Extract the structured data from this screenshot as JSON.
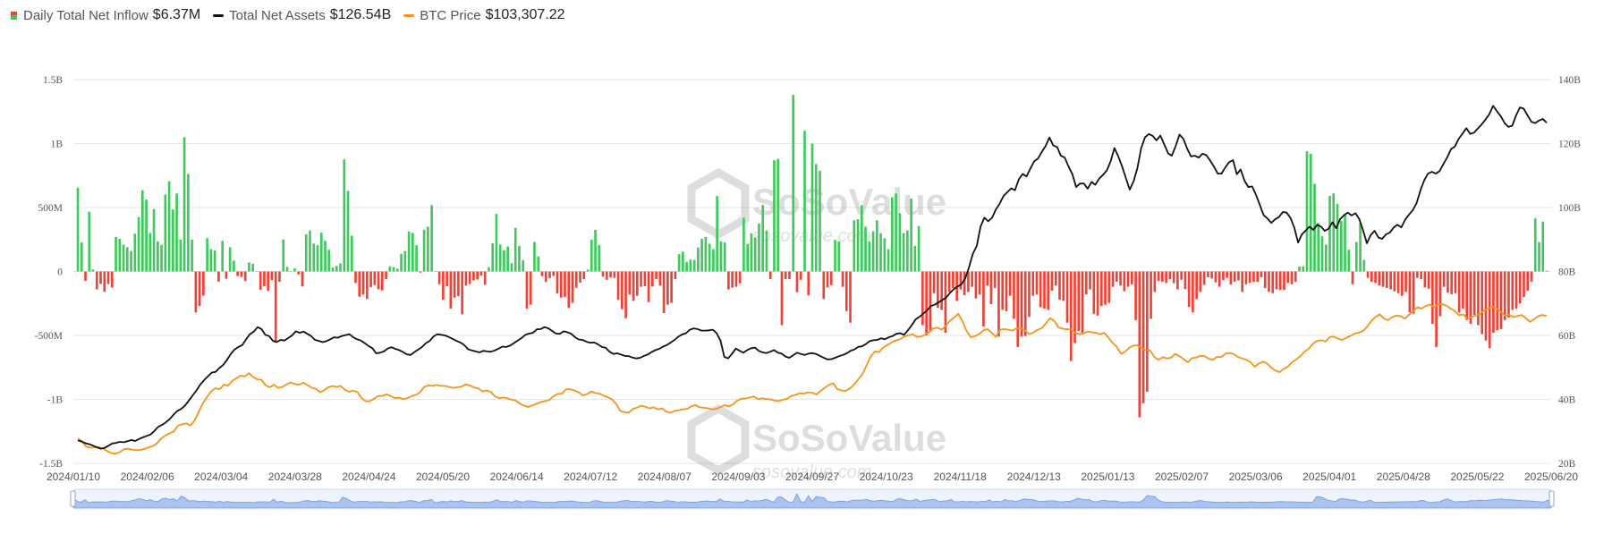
{
  "legend": {
    "inflow_label": "Daily Total Net Inflow",
    "inflow_value": "$6.37M",
    "assets_label": "Total Net Assets",
    "assets_value": "$126.54B",
    "btc_label": "BTC Price",
    "btc_value": "$103,307.22"
  },
  "watermark": {
    "brand": "SoSoValue",
    "site": "sosovalue.com"
  },
  "colors": {
    "positive": "#3dc95b",
    "negative": "#ef4136",
    "assets": "#111111",
    "btc": "#f7931a",
    "grid": "#e6e6e6",
    "navigator": "#a9c4f0"
  },
  "chart_data": {
    "type": "bar",
    "x_ticks": [
      "2024/01/10",
      "2024/02/06",
      "2024/03/04",
      "2024/03/28",
      "2024/04/24",
      "2024/05/20",
      "2024/06/14",
      "2024/07/12",
      "2024/08/07",
      "2024/09/03",
      "2024/09/27",
      "2024/10/23",
      "2024/11/18",
      "2024/12/13",
      "2025/01/13",
      "2025/02/07",
      "2025/03/06",
      "2025/04/01",
      "2025/04/28",
      "2025/05/22",
      "2025/06/20"
    ],
    "y_left_ticks": [
      "1.5B",
      "1B",
      "500M",
      "0",
      "-500M",
      "-1B",
      "-1.5B"
    ],
    "y_left_range": [
      -1500,
      1500
    ],
    "y_left_unit": "M USD",
    "y_right_ticks": [
      "140B",
      "120B",
      "100B",
      "80B",
      "60B",
      "40B",
      "20B"
    ],
    "y_right_range": [
      20,
      140
    ],
    "y_right_unit": "B USD",
    "grid": true,
    "series": [
      {
        "name": "Daily Total Net Inflow",
        "kind": "bar",
        "axis": "left",
        "x_start": "2024/01/11",
        "x_step": "1 trading day",
        "values": [
          655,
          227,
          -73,
          468,
          15,
          -140,
          -97,
          -158,
          -98,
          -126,
          270,
          255,
          210,
          190,
          160,
          295,
          425,
          635,
          562,
          301,
          488,
          236,
          208,
          601,
          705,
          485,
          610,
          250,
          1050,
          762,
          250,
          -320,
          -270,
          -189,
          260,
          175,
          165,
          -80,
          240,
          -57,
          190,
          85,
          -36,
          -43,
          -75,
          70,
          60,
          0,
          -144,
          -115,
          -152,
          -68,
          -550,
          -80,
          250,
          36,
          0,
          25,
          -23,
          -117,
          290,
          320,
          218,
          205,
          303,
          239,
          170,
          31,
          44,
          63,
          876,
          630,
          280,
          -90,
          -197,
          -180,
          -214,
          -124,
          -106,
          -140,
          -148,
          -60,
          40,
          35,
          21,
          138,
          160,
          312,
          302,
          205,
          -9,
          326,
          350,
          519,
          0,
          -100,
          -220,
          -115,
          -290,
          -205,
          -193,
          -335,
          -111,
          -98,
          -70,
          -63,
          -33,
          -104,
          33,
          220,
          450,
          210,
          166,
          195,
          65,
          340,
          200,
          88,
          -290,
          -260,
          230,
          118,
          -37,
          -82,
          -52,
          -35,
          -172,
          -205,
          -200,
          -285,
          -245,
          -128,
          -87,
          -60,
          15,
          248,
          325,
          208,
          -40,
          -65,
          -47,
          -50,
          -222,
          -295,
          -365,
          -180,
          -230,
          -190,
          -120,
          -115,
          -240,
          -118,
          -59,
          -110,
          -325,
          -260,
          -245,
          -60,
          135,
          155,
          75,
          93,
          90,
          187,
          256,
          270,
          217,
          175,
          590,
          235,
          227,
          -140,
          -127,
          -120,
          -93,
          420,
          215,
          298,
          265,
          375,
          520,
          320,
          -60,
          870,
          880,
          -420,
          -60,
          -60,
          1380,
          -162,
          -65,
          1100,
          -187,
          1000,
          840,
          787,
          -215,
          -125,
          -106,
          245,
          235,
          -120,
          -310,
          -400,
          400,
          408,
          518,
          350,
          235,
          315,
          400,
          300,
          260,
          175,
          580,
          610,
          455,
          300,
          320,
          570,
          200,
          355,
          -420,
          -500,
          -470,
          -170,
          -285,
          -300,
          -480,
          -160,
          -130,
          -230,
          -140,
          -185,
          -160,
          -120,
          -210,
          -180,
          -430,
          -110,
          -255,
          -130,
          -510,
          -300,
          -310,
          -190,
          -370,
          -590,
          -510,
          -505,
          -355,
          -190,
          -180,
          -280,
          -290,
          -300,
          -150,
          -110,
          -220,
          -230,
          -400,
          -700,
          -560,
          -465,
          -480,
          -180,
          -140,
          -330,
          -345,
          -270,
          -260,
          -245,
          -120,
          -80,
          -110,
          -155,
          -120,
          -100,
          -380,
          -1140,
          -1030,
          -940,
          -370,
          -160,
          -75,
          -80,
          -90,
          -60,
          -92,
          -140,
          -65,
          -138,
          -278,
          -320,
          -215,
          -160,
          -105,
          -45,
          -55,
          -85,
          -120,
          -68,
          -50,
          -102,
          -80,
          -70,
          -160,
          -100,
          -90,
          -80,
          -80,
          -45,
          -130,
          -160,
          -170,
          -140,
          -145,
          -145,
          -90,
          -100,
          -80,
          38,
          40,
          940,
          920,
          685,
          380,
          275,
          210,
          591,
          610,
          530,
          395,
          440,
          170,
          -100,
          230,
          380,
          90,
          -50,
          -80,
          -90,
          -110,
          -120,
          -130,
          -140,
          -155,
          -170,
          -190,
          -160,
          -320,
          -330,
          -50,
          -60,
          -125,
          -135,
          -410,
          -590,
          -350,
          -120,
          -165,
          -178,
          -170,
          -320,
          -290,
          -380,
          -410,
          -340,
          -420,
          -490,
          -540,
          -600,
          -480,
          -460,
          -450,
          -380,
          -360,
          -300,
          -290,
          -250,
          -200,
          -150,
          -80,
          415,
          230,
          390,
          6
        ]
      },
      {
        "name": "Total Net Assets",
        "kind": "line",
        "axis": "right",
        "x_start": "2024/01/11",
        "x_step": "1 trading day",
        "values": [
          27.2,
          26.8,
          26.3,
          26.0,
          25.5,
          25.0,
          24.6,
          24.8,
          25.5,
          26.2,
          26.4,
          26.7,
          26.6,
          26.9,
          27.3,
          27.0,
          27.6,
          28.1,
          28.6,
          29.0,
          30.1,
          31.4,
          32.0,
          32.8,
          33.8,
          35.2,
          36.4,
          37.0,
          38.0,
          39.6,
          41.2,
          42.8,
          44.6,
          46.0,
          47.2,
          48.4,
          48.6,
          49.8,
          50.8,
          52.4,
          54.2,
          55.6,
          56.4,
          57.0,
          58.8,
          60.4,
          61.2,
          62.6,
          62.0,
          60.2,
          59.8,
          58.3,
          57.9,
          58.6,
          58.4,
          59.2,
          60.0,
          61.3,
          60.8,
          61.2,
          60.5,
          59.8,
          58.6,
          58.3,
          57.9,
          58.2,
          58.8,
          59.4,
          59.3,
          59.8,
          60.1,
          60.4,
          59.4,
          58.8,
          58.4,
          57.6,
          56.7,
          56.0,
          54.4,
          54.6,
          55.0,
          55.9,
          56.3,
          55.8,
          55.4,
          54.8,
          54.1,
          53.9,
          54.8,
          55.6,
          56.4,
          57.6,
          58.3,
          59.7,
          60.4,
          60.2,
          60.0,
          59.5,
          58.9,
          58.3,
          57.8,
          57.0,
          55.7,
          55.3,
          55.0,
          54.7,
          55.2,
          55.0,
          54.9,
          55.3,
          55.9,
          56.5,
          56.4,
          56.8,
          57.6,
          58.4,
          59.2,
          60.2,
          60.6,
          60.8,
          61.9,
          62.0,
          62.6,
          62.2,
          61.4,
          60.6,
          60.5,
          61.3,
          61.0,
          60.5,
          59.4,
          58.7,
          58.6,
          58.0,
          57.7,
          57.8,
          57.2,
          56.4,
          56.1,
          54.9,
          54.2,
          54.4,
          54.0,
          53.6,
          53.5,
          53.1,
          52.8,
          53.0,
          53.6,
          54.0,
          54.8,
          55.4,
          55.8,
          56.5,
          57.0,
          57.8,
          58.6,
          59.6,
          60.3,
          60.7,
          61.8,
          62.2,
          62.0,
          61.5,
          61.5,
          61.6,
          61.8,
          60.7,
          58.4,
          53.3,
          52.8,
          54.2,
          55.9,
          55.2,
          54.6,
          55.4,
          56.0,
          56.2,
          55.2,
          54.7,
          54.5,
          54.9,
          55.4,
          54.6,
          54.3,
          53.4,
          53.0,
          53.8,
          54.6,
          54.2,
          53.9,
          54.3,
          54.5,
          54.2,
          53.6,
          53.0,
          52.5,
          52.6,
          53.0,
          53.5,
          53.9,
          54.4,
          55.2,
          55.6,
          56.4,
          56.6,
          57.3,
          58.2,
          58.5,
          58.6,
          59.1,
          58.8,
          59.4,
          59.8,
          60.5,
          60.7,
          60.2,
          61.6,
          63.2,
          65.0,
          65.8,
          66.8,
          67.8,
          69.2,
          69.6,
          70.3,
          71.1,
          71.8,
          73.3,
          74.5,
          75.3,
          76.0,
          77.8,
          81.4,
          85.6,
          88.0,
          94.0,
          96.8,
          95.7,
          96.8,
          99.4,
          101.2,
          103.6,
          104.8,
          106.0,
          105.4,
          108.8,
          110.5,
          109.7,
          112.1,
          114.4,
          115.3,
          117.4,
          119.2,
          121.9,
          119.4,
          118.9,
          116.2,
          115.6,
          112.8,
          110.4,
          106.4,
          107.5,
          107.5,
          105.9,
          108.0,
          107.1,
          109.0,
          110.2,
          111.6,
          114.4,
          118.6,
          116.0,
          112.8,
          109.2,
          105.6,
          108.2,
          112.4,
          118.6,
          122.0,
          123.0,
          122.4,
          121.0,
          122.5,
          119.8,
          117.0,
          116.2,
          119.2,
          122.8,
          121.5,
          118.4,
          116.0,
          116.2,
          115.6,
          116.8,
          116.4,
          114.7,
          112.8,
          110.6,
          110.6,
          112.6,
          114.2,
          114.8,
          110.4,
          111.9,
          108.4,
          106.4,
          106.6,
          104.0,
          100.8,
          97.6,
          96.6,
          95.2,
          96.3,
          97.0,
          98.6,
          98.4,
          96.8,
          93.8,
          89.0,
          91.6,
          92.8,
          94.0,
          93.0,
          94.6,
          94.0,
          92.7,
          93.4,
          95.4,
          93.5,
          96.4,
          97.6,
          98.4,
          97.5,
          98.2,
          96.4,
          92.8,
          88.8,
          91.4,
          92.7,
          90.6,
          90.2,
          91.6,
          92.2,
          93.8,
          94.6,
          93.8,
          96.2,
          97.8,
          99.2,
          101.4,
          105.4,
          108.6,
          110.6,
          111.2,
          110.6,
          111.4,
          113.6,
          115.7,
          118.3,
          119.1,
          121.5,
          123.1,
          124.8,
          123.0,
          123.4,
          124.7,
          126.0,
          127.5,
          129.2,
          131.8,
          130.1,
          128.5,
          126.4,
          125.2,
          125.6,
          128.8,
          131.3,
          130.9,
          128.8,
          126.8,
          126.4,
          127.2,
          127.7,
          126.5
        ]
      },
      {
        "name": "BTC Price",
        "kind": "line",
        "axis": "right",
        "x_start": "2024/01/11",
        "x_step": "1 trading day",
        "values": [
          27.8,
          27.0,
          25.2,
          24.9,
          25.0,
          25.1,
          24.6,
          23.9,
          23.2,
          23.0,
          23.4,
          24.4,
          24.6,
          24.3,
          24.1,
          24.2,
          24.5,
          25.0,
          25.4,
          26.3,
          27.8,
          28.7,
          29.4,
          30.0,
          31.8,
          32.2,
          32.5,
          31.8,
          33.4,
          36.2,
          38.8,
          40.8,
          42.6,
          43.5,
          43.2,
          44.6,
          44.3,
          45.8,
          46.6,
          47.4,
          47.2,
          48.2,
          47.0,
          46.3,
          46.1,
          44.4,
          43.8,
          44.6,
          43.6,
          43.9,
          44.7,
          45.3,
          44.8,
          44.6,
          45.2,
          44.5,
          43.7,
          43.3,
          42.3,
          42.8,
          43.8,
          44.2,
          43.9,
          44.2,
          43.0,
          42.4,
          42.7,
          42.3,
          40.4,
          39.4,
          39.5,
          40.2,
          41.1,
          41.1,
          41.6,
          41.0,
          40.4,
          40.5,
          40.1,
          40.4,
          41.0,
          41.4,
          42.2,
          43.9,
          44.4,
          44.2,
          44.5,
          44.2,
          44.2,
          43.9,
          43.6,
          43.8,
          44.0,
          44.7,
          44.3,
          43.7,
          43.4,
          42.5,
          42.8,
          42.3,
          40.9,
          40.4,
          40.6,
          40.3,
          39.9,
          39.6,
          38.6,
          38.0,
          37.6,
          38.2,
          38.6,
          39.2,
          39.5,
          39.8,
          41.0,
          41.7,
          41.8,
          43.2,
          43.2,
          42.8,
          42.2,
          41.3,
          41.6,
          42.5,
          42.0,
          41.8,
          41.2,
          40.7,
          40.0,
          38.6,
          36.4,
          36.0,
          35.8,
          37.0,
          37.4,
          38.0,
          37.7,
          37.2,
          37.5,
          36.9,
          37.2,
          36.2,
          35.8,
          36.4,
          36.6,
          36.9,
          37.0,
          37.8,
          38.2,
          37.5,
          37.4,
          37.2,
          36.9,
          37.0,
          37.6,
          38.2,
          37.8,
          38.4,
          39.6,
          40.2,
          40.3,
          40.6,
          40.9,
          40.1,
          40.3,
          40.1,
          40.0,
          39.6,
          39.5,
          39.9,
          40.2,
          41.1,
          41.4,
          41.9,
          41.8,
          42.2,
          42.1,
          41.5,
          42.6,
          43.6,
          44.5,
          45.1,
          43.2,
          42.8,
          42.6,
          43.4,
          44.6,
          46.2,
          47.8,
          50.6,
          53.4,
          55.0,
          54.8,
          56.2,
          57.0,
          57.8,
          58.4,
          58.8,
          59.6,
          60.0,
          60.4,
          59.6,
          59.6,
          60.2,
          61.0,
          62.2,
          62.4,
          61.8,
          63.0,
          64.6,
          65.6,
          66.8,
          64.4,
          61.4,
          59.4,
          59.8,
          60.4,
          61.6,
          62.0,
          60.8,
          59.6,
          61.8,
          62.0,
          61.8,
          61.5,
          62.3,
          62.2,
          61.5,
          60.4,
          60.9,
          61.8,
          62.3,
          63.8,
          65.4,
          64.6,
          62.5,
          62.1,
          61.9,
          62.0,
          60.8,
          60.4,
          60.6,
          61.2,
          61.0,
          60.8,
          60.4,
          60.8,
          59.3,
          57.6,
          56.4,
          54.2,
          55.0,
          56.2,
          56.8,
          56.9,
          56.0,
          55.4,
          55.3,
          53.2,
          52.4,
          53.2,
          52.8,
          53.1,
          54.2,
          53.5,
          52.6,
          51.6,
          52.9,
          53.1,
          53.6,
          53.5,
          52.7,
          52.4,
          53.3,
          53.2,
          54.3,
          54.5,
          54.2,
          53.3,
          52.8,
          52.4,
          51.7,
          50.2,
          51.2,
          51.8,
          51.2,
          50.0,
          49.0,
          48.5,
          49.5,
          50.3,
          51.6,
          52.5,
          53.6,
          54.9,
          55.9,
          57.4,
          58.3,
          58.5,
          58.1,
          59.5,
          59.6,
          59.0,
          58.6,
          59.3,
          59.9,
          60.6,
          60.9,
          61.4,
          62.8,
          64.6,
          65.8,
          66.6,
          65.2,
          64.8,
          65.8,
          66.2,
          66.0,
          65.2,
          66.5,
          67.6,
          68.8,
          68.4,
          69.2,
          69.6,
          68.8,
          69.7,
          69.8,
          69.3,
          68.4,
          67.6,
          66.3,
          66.6,
          65.2,
          65.8,
          66.2,
          66.7,
          67.8,
          68.4,
          69.0,
          68.3,
          67.4,
          66.2,
          66.4,
          65.7,
          66.1,
          66.4,
          65.4,
          64.2,
          65.1,
          66.0,
          66.4,
          66.1
        ]
      }
    ]
  }
}
